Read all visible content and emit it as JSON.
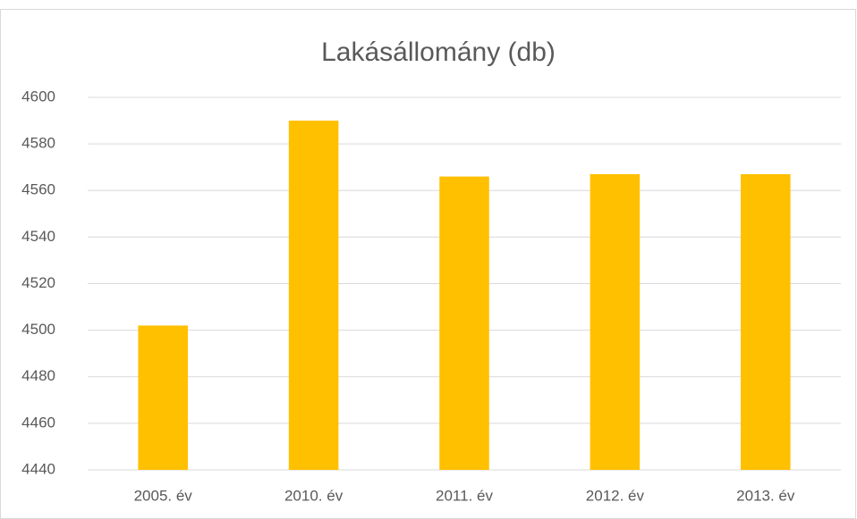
{
  "chart_data": {
    "type": "bar",
    "title": "Lakásállomány (db)",
    "categories": [
      "2005. év",
      "2010. év",
      "2011. év",
      "2012. év",
      "2013. év"
    ],
    "values": [
      4502,
      4590,
      4566,
      4567,
      4567
    ],
    "color": "#ffc000",
    "ylim": [
      4440,
      4600
    ],
    "yticks": [
      4440,
      4460,
      4480,
      4500,
      4520,
      4540,
      4560,
      4580,
      4600
    ],
    "grid": true
  }
}
